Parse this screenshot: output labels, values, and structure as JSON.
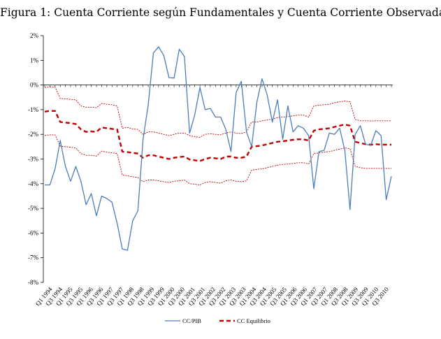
{
  "title": "Figura 1: Cuenta Corriente según Fundamentales y Cuenta Corriente Observada",
  "chart_data": {
    "type": "line",
    "title": "Figura 1: Cuenta Corriente según Fundamentales y Cuenta Corriente Observada",
    "ylim": [
      -8,
      2
    ],
    "yticks": [
      2,
      1,
      0,
      -1,
      -2,
      -3,
      -4,
      -5,
      -6,
      -7,
      -8
    ],
    "ytick_labels": [
      "2%",
      "1%",
      "0%",
      "-1%",
      "-2%",
      "-3%",
      "-4%",
      "-5%",
      "-6%",
      "-7%",
      "-8%"
    ],
    "x_labels": [
      "Q1 1994",
      "Q3 1994",
      "Q1 1995",
      "Q3 1995",
      "Q1 1996",
      "Q3 1996",
      "Q1 1997",
      "Q3 1997",
      "Q1 1998",
      "Q3 1998",
      "Q1 1999",
      "Q3 1999",
      "Q1 2000",
      "Q3 2000",
      "Q1 2001",
      "Q3 2001",
      "Q1 2002",
      "Q3 2002",
      "Q1 2003",
      "Q3 2003",
      "Q1 2004",
      "Q3 2004",
      "Q1 2005",
      "Q3 2005",
      "Q1 2006",
      "Q3 2006",
      "Q1 2007",
      "Q3 2007",
      "Q1 2008",
      "Q3 2008",
      "Q1 2009",
      "Q3 2009",
      "Q1 2010",
      "Q3 2010"
    ],
    "grid": false,
    "legend": "bottom",
    "series": [
      {
        "name": "CC/PIB",
        "color": "#4a7ebb",
        "style": "solid",
        "values": [
          -4.05,
          -4.05,
          -3.4,
          -2.25,
          -3.3,
          -3.9,
          -3.3,
          -3.9,
          -4.85,
          -4.4,
          -5.3,
          -4.5,
          -4.6,
          -4.75,
          -5.6,
          -6.65,
          -6.7,
          -5.5,
          -5.1,
          -2.2,
          -0.8,
          1.3,
          1.55,
          1.2,
          0.3,
          0.28,
          1.45,
          1.15,
          -1.95,
          -1.2,
          -0.1,
          -1.0,
          -0.95,
          -1.3,
          -1.3,
          -1.8,
          -2.7,
          -0.3,
          0.15,
          -1.9,
          -2.5,
          -0.7,
          0.25,
          -0.4,
          -1.5,
          -0.6,
          -2.2,
          -0.85,
          -1.9,
          -1.65,
          -1.75,
          -2.05,
          -4.2,
          -2.7,
          -2.65,
          -1.95,
          -2.0,
          -1.75,
          -2.65,
          -5.05,
          -2.0,
          -1.65,
          -2.4,
          -2.45,
          -1.85,
          -2.05,
          -4.65,
          -3.7
        ]
      },
      {
        "name": "CC Equilibrio",
        "color": "#c00000",
        "style": "dashed",
        "values": [
          -1.08,
          -1.05,
          -1.05,
          -1.5,
          -1.52,
          -1.55,
          -1.58,
          -1.8,
          -1.9,
          -1.88,
          -1.9,
          -1.72,
          -1.75,
          -1.78,
          -1.8,
          -2.7,
          -2.72,
          -2.75,
          -2.78,
          -2.95,
          -2.85,
          -2.85,
          -2.9,
          -2.95,
          -3.0,
          -2.95,
          -2.92,
          -2.9,
          -3.02,
          -3.05,
          -3.08,
          -3.0,
          -2.95,
          -2.97,
          -3.0,
          -2.9,
          -2.9,
          -2.95,
          -2.95,
          -2.9,
          -2.5,
          -2.48,
          -2.45,
          -2.4,
          -2.35,
          -2.3,
          -2.28,
          -2.25,
          -2.22,
          -2.2,
          -2.2,
          -2.25,
          -1.85,
          -1.8,
          -1.78,
          -1.75,
          -1.7,
          -1.65,
          -1.6,
          -1.65,
          -2.3,
          -2.35,
          -2.4,
          -2.42,
          -2.4,
          -2.42,
          -2.42,
          -2.42
        ]
      },
      {
        "name": "",
        "color": "#c00000",
        "style": "dotted",
        "values": [
          -0.1,
          -0.08,
          -0.08,
          -0.55,
          -0.56,
          -0.58,
          -0.6,
          -0.85,
          -0.9,
          -0.9,
          -0.92,
          -0.75,
          -0.78,
          -0.8,
          -0.85,
          -1.75,
          -1.72,
          -1.78,
          -1.8,
          -2.0,
          -1.9,
          -1.9,
          -1.95,
          -2.0,
          -2.05,
          -2.0,
          -1.95,
          -1.95,
          -2.05,
          -2.1,
          -2.12,
          -2.0,
          -1.98,
          -2.0,
          -2.02,
          -1.95,
          -1.9,
          -1.95,
          -1.97,
          -1.9,
          -1.5,
          -1.5,
          -1.45,
          -1.42,
          -1.38,
          -1.32,
          -1.3,
          -1.28,
          -1.25,
          -1.22,
          -1.22,
          -1.3,
          -0.85,
          -0.82,
          -0.8,
          -0.78,
          -0.72,
          -0.68,
          -0.65,
          -0.68,
          -1.4,
          -1.45,
          -1.45,
          -1.46,
          -1.45,
          -1.45,
          -1.45,
          -1.45
        ]
      },
      {
        "name": "",
        "color": "#c00000",
        "style": "dotted",
        "values": [
          -2.05,
          -2.02,
          -2.02,
          -2.48,
          -2.5,
          -2.52,
          -2.55,
          -2.78,
          -2.85,
          -2.85,
          -2.88,
          -2.68,
          -2.72,
          -2.75,
          -2.78,
          -3.65,
          -3.68,
          -3.72,
          -3.75,
          -3.92,
          -3.85,
          -3.85,
          -3.88,
          -3.92,
          -3.95,
          -3.9,
          -3.88,
          -3.85,
          -4.0,
          -4.02,
          -4.05,
          -3.95,
          -3.92,
          -3.95,
          -3.98,
          -3.88,
          -3.85,
          -3.9,
          -3.92,
          -3.88,
          -3.45,
          -3.42,
          -3.4,
          -3.35,
          -3.3,
          -3.25,
          -3.22,
          -3.2,
          -3.18,
          -3.15,
          -3.15,
          -3.2,
          -2.78,
          -2.75,
          -2.72,
          -2.7,
          -2.65,
          -2.6,
          -2.55,
          -2.58,
          -3.3,
          -3.35,
          -3.38,
          -3.38,
          -3.38,
          -3.38,
          -3.38,
          -3.38
        ]
      }
    ]
  }
}
